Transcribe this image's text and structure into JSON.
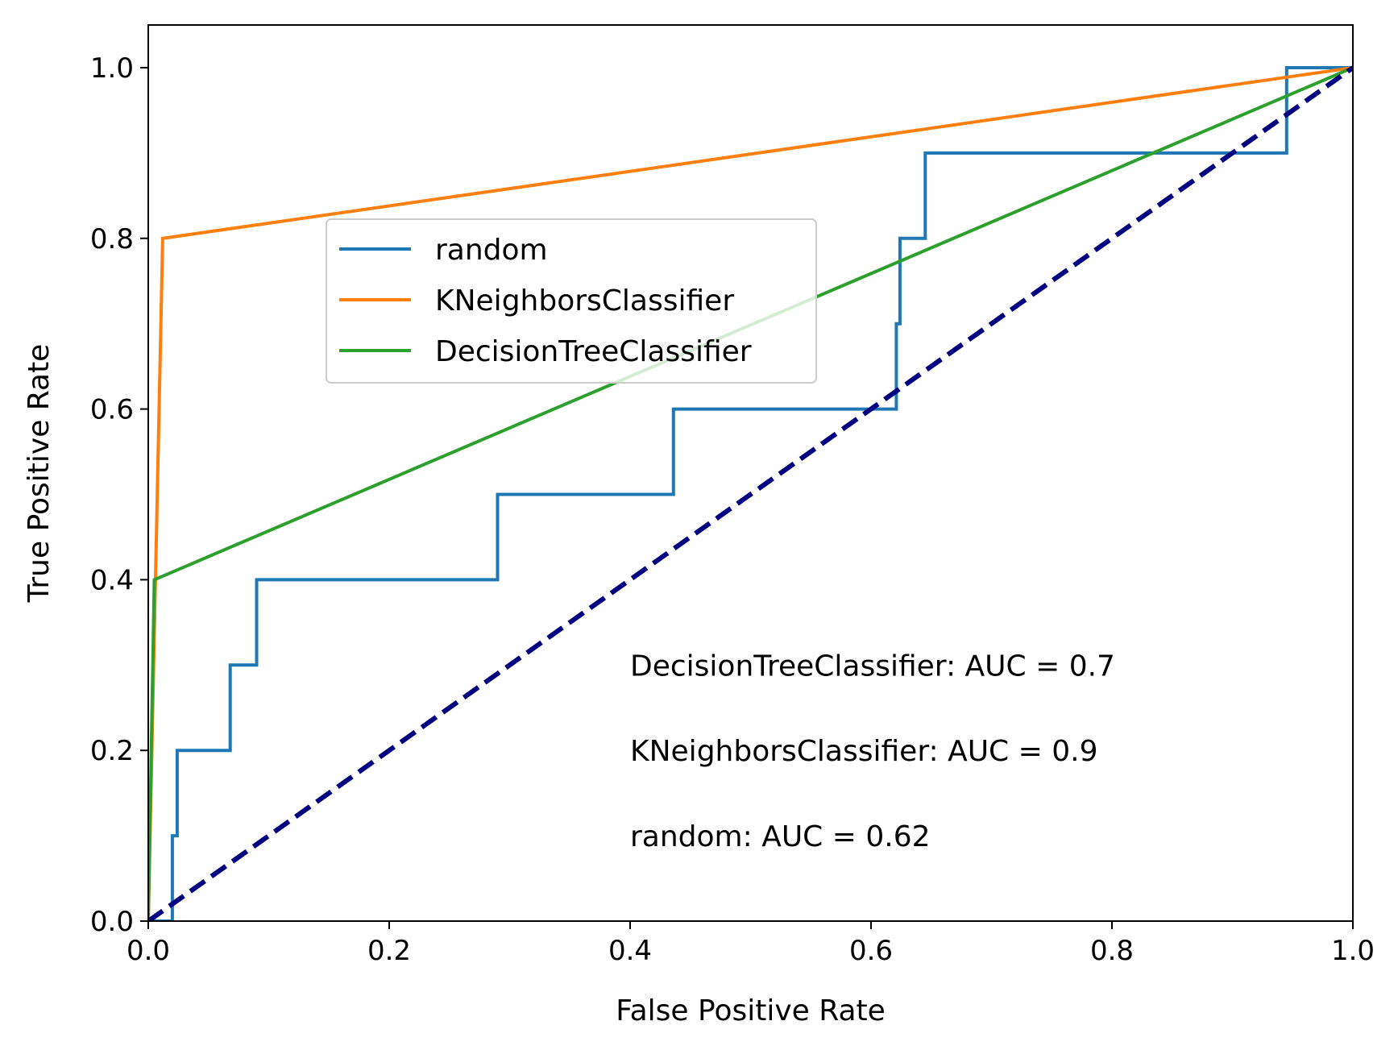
{
  "chart_data": {
    "type": "line",
    "xlabel": "False Positive Rate",
    "ylabel": "True Positive Rate",
    "xlim": [
      0.0,
      1.0
    ],
    "ylim": [
      0.0,
      1.05
    ],
    "xticks": [
      "0.0",
      "0.2",
      "0.4",
      "0.6",
      "0.8",
      "1.0"
    ],
    "yticks": [
      "0.0",
      "0.2",
      "0.4",
      "0.6",
      "0.8",
      "1.0"
    ],
    "grid": false,
    "legend_position": "upper-center-left",
    "series": [
      {
        "name": "random",
        "color": "#1f77b4",
        "step": true,
        "x": [
          0.0,
          0.02,
          0.02,
          0.024,
          0.024,
          0.068,
          0.068,
          0.09,
          0.09,
          0.29,
          0.29,
          0.436,
          0.436,
          0.621,
          0.621,
          0.624,
          0.624,
          0.645,
          0.645,
          0.945,
          0.945,
          1.0
        ],
        "y": [
          0.0,
          0.0,
          0.1,
          0.1,
          0.2,
          0.2,
          0.3,
          0.3,
          0.4,
          0.4,
          0.5,
          0.5,
          0.6,
          0.6,
          0.7,
          0.7,
          0.8,
          0.8,
          0.9,
          0.9,
          1.0,
          1.0
        ]
      },
      {
        "name": "KNeighborsClassifier",
        "color": "#ff7f0e",
        "x": [
          0.0,
          0.012,
          1.0
        ],
        "y": [
          0.0,
          0.8,
          1.0
        ]
      },
      {
        "name": "DecisionTreeClassifier",
        "color": "#2ca02c",
        "x": [
          0.0,
          0.005,
          1.0
        ],
        "y": [
          0.0,
          0.4,
          1.0
        ]
      }
    ],
    "reference_line": {
      "color": "#000080",
      "dashed": true,
      "x": [
        0.0,
        1.0
      ],
      "y": [
        0.0,
        1.0
      ]
    },
    "annotations": [
      {
        "text": "DecisionTreeClassifier: AUC = 0.7",
        "x": 0.4,
        "y": 0.3
      },
      {
        "text": "KNeighborsClassifier: AUC = 0.9",
        "x": 0.4,
        "y": 0.2
      },
      {
        "text": "random: AUC = 0.62",
        "x": 0.4,
        "y": 0.1
      }
    ]
  }
}
